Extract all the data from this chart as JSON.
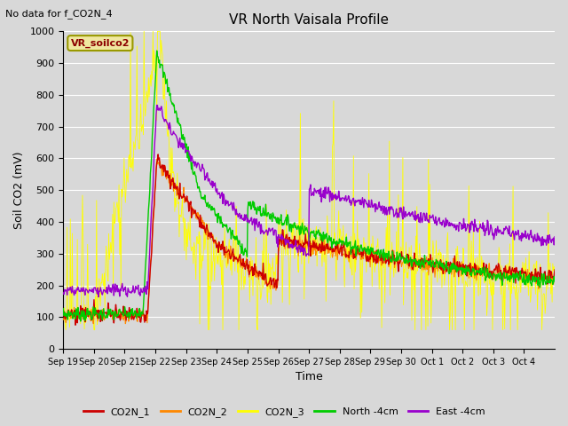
{
  "title": "VR North Vaisala Profile",
  "top_left_text": "No data for f_CO2N_4",
  "ylabel": "Soil CO2 (mV)",
  "xlabel": "Time",
  "ylim": [
    0,
    1000
  ],
  "background_color": "#d8d8d8",
  "plot_bg_color": "#d8d8d8",
  "legend_label": "VR_soilco2",
  "legend_text_color": "#8B0000",
  "legend_bg": "#f0e8a0",
  "series_colors": {
    "CO2N_1": "#cc0000",
    "CO2N_2": "#ff8800",
    "CO2N_3": "#ffff00",
    "North_4cm": "#00cc00",
    "East_4cm": "#9900cc"
  },
  "xtick_labels": [
    "Sep 19",
    "Sep 20",
    "Sep 21",
    "Sep 22",
    "Sep 23",
    "Sep 24",
    "Sep 25",
    "Sep 26",
    "Sep 27",
    "Sep 28",
    "Sep 29",
    "Sep 30",
    "Oct 1",
    "Oct 2",
    "Oct 3",
    "Oct 4"
  ],
  "ytick_values": [
    0,
    100,
    200,
    300,
    400,
    500,
    600,
    700,
    800,
    900,
    1000
  ],
  "n_days": 16,
  "pts_per_day": 48,
  "spike_day": 3.0
}
